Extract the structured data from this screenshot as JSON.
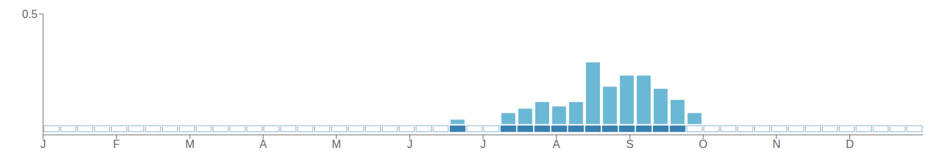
{
  "chart_data": {
    "type": "bar",
    "x": [
      0.5,
      1.5,
      2.5,
      3.5,
      4.5,
      5.5,
      6.5,
      7.5,
      8.5,
      9.5,
      10.5,
      11.5,
      12.5,
      13.5,
      14.5,
      15.5,
      16.5,
      17.5,
      18.5,
      19.5,
      20.5,
      21.5,
      22.5,
      23.5,
      24.5,
      25.5,
      26.5,
      27.5,
      28.5,
      29.5,
      30.5,
      31.5,
      32.5,
      33.5,
      34.5,
      35.5,
      36.5,
      37.5,
      38.5,
      39.5,
      40.5,
      41.5,
      42.5,
      43.5,
      44.5,
      45.5,
      46.5,
      47.5,
      48.5,
      49.5,
      50.5,
      51.5
    ],
    "values": [
      0,
      0,
      0,
      0,
      0,
      0,
      0,
      0,
      0,
      0,
      0,
      0,
      0,
      0,
      0,
      0,
      0,
      0,
      0,
      0,
      0,
      0,
      0,
      0,
      0.02,
      0,
      0,
      0.05,
      0.07,
      0.1,
      0.08,
      0.1,
      0.28,
      0.17,
      0.22,
      0.22,
      0.16,
      0.11,
      0.05,
      0,
      0,
      0,
      0,
      0,
      0,
      0,
      0,
      0,
      0,
      0,
      0,
      0
    ],
    "color": "#6bb8d4",
    "stripe": {
      "values": [
        0,
        0,
        0,
        0,
        0,
        0,
        0,
        0,
        0,
        0,
        0,
        0,
        0,
        0,
        0,
        0,
        0,
        0,
        0,
        0,
        0,
        0,
        0,
        0,
        1,
        0,
        0,
        1,
        1,
        1,
        1,
        1,
        1,
        1,
        1,
        1,
        1,
        1,
        0,
        0,
        0,
        0,
        0,
        0,
        0,
        0,
        0,
        0,
        0,
        0,
        0,
        0
      ],
      "span": [
        -0.035,
        -0.0075
      ],
      "colors": [
        "#ffffff",
        "#3880b0"
      ]
    },
    "xlim": [
      0,
      52
    ],
    "xticks": [
      {
        "value": 0,
        "label": "J"
      },
      {
        "value": 4.33,
        "label": "F"
      },
      {
        "value": 8.67,
        "label": "M"
      },
      {
        "value": 13.0,
        "label": "A"
      },
      {
        "value": 17.33,
        "label": "M"
      },
      {
        "value": 21.67,
        "label": "J"
      },
      {
        "value": 26.0,
        "label": "J"
      },
      {
        "value": 30.33,
        "label": "A"
      },
      {
        "value": 34.67,
        "label": "S"
      },
      {
        "value": 39.0,
        "label": "O"
      },
      {
        "value": 43.33,
        "label": "N"
      },
      {
        "value": 47.67,
        "label": "D"
      }
    ],
    "ylim": [
      -0.04875,
      0.5
    ],
    "yticks": [
      0.5
    ],
    "grid": false
  }
}
